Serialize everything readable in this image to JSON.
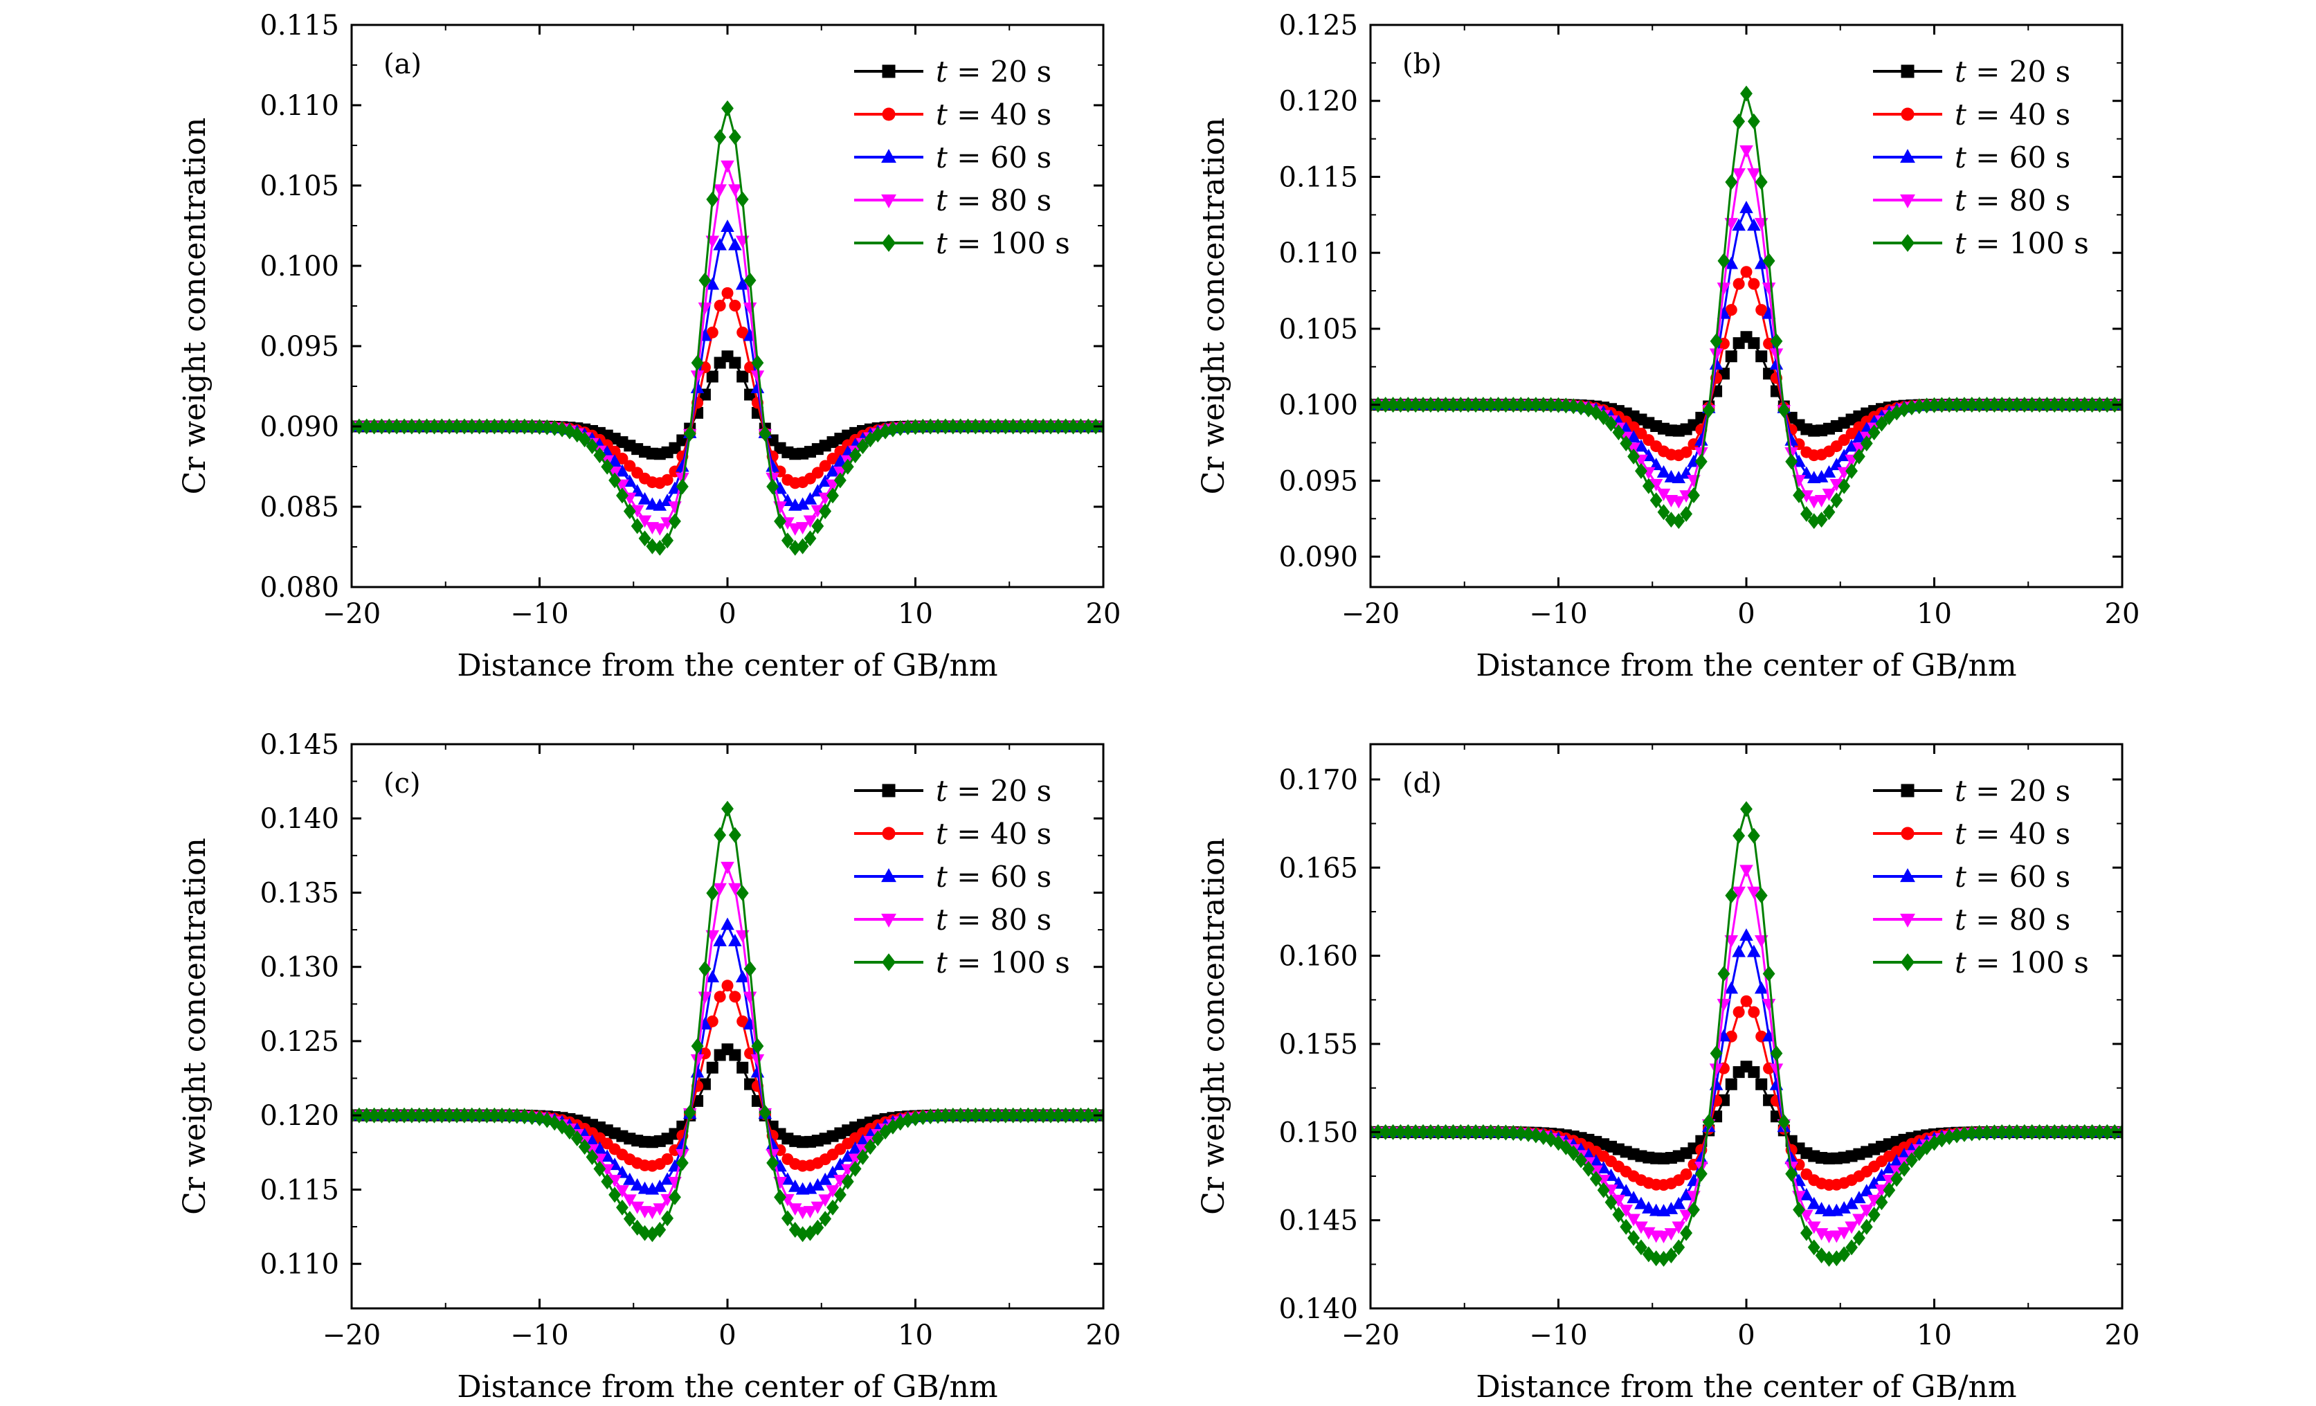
{
  "figure": {
    "series_colors": [
      "#000000",
      "#ff0000",
      "#0000ff",
      "#ff00ff",
      "#008000"
    ],
    "series_markers": [
      "square",
      "circle",
      "triangle-up",
      "triangle-down",
      "diamond"
    ]
  },
  "chart_data": [
    {
      "type": "line",
      "panel": "(a)",
      "xlabel": "Distance from the center of GB/nm",
      "ylabel": "Cr weight concentration",
      "xlim": [
        -20,
        20
      ],
      "ylim": [
        0.08,
        0.115
      ],
      "xticks": [
        -20,
        -10,
        0,
        10,
        20
      ],
      "xtick_labels": [
        "−20",
        "−10",
        "0",
        "10",
        "20"
      ],
      "yticks": [
        0.08,
        0.085,
        0.09,
        0.095,
        0.1,
        0.105,
        0.11,
        0.115
      ],
      "ytick_labels": [
        "0.080",
        "0.085",
        "0.090",
        "0.095",
        "0.100",
        "0.105",
        "0.110",
        "0.115"
      ],
      "legend_position": "top-right",
      "baseline": 0.09,
      "peak_x": 0,
      "valley_x": [
        -3.5,
        3.5
      ],
      "series": [
        {
          "name": "t = 20 s",
          "symbol": "t",
          "rest": " = 20 s",
          "peak": 0.0947,
          "valley": 0.0883
        },
        {
          "name": "t = 40 s",
          "symbol": "t",
          "rest": " = 40 s",
          "peak": 0.099,
          "valley": 0.0865
        },
        {
          "name": "t = 60 s",
          "symbol": "t",
          "rest": " = 60 s",
          "peak": 0.1034,
          "valley": 0.0851
        },
        {
          "name": "t = 80 s",
          "symbol": "t",
          "rest": " = 80 s",
          "peak": 0.1075,
          "valley": 0.0837
        },
        {
          "name": "t = 100 s",
          "symbol": "t",
          "rest": " = 100 s",
          "peak": 0.1113,
          "valley": 0.0825
        }
      ]
    },
    {
      "type": "line",
      "panel": "(b)",
      "xlabel": "Distance from the center of GB/nm",
      "ylabel": "Cr weight concentration",
      "xlim": [
        -20,
        20
      ],
      "ylim": [
        0.088,
        0.125
      ],
      "xticks": [
        -20,
        -10,
        0,
        10,
        20
      ],
      "xtick_labels": [
        "−20",
        "−10",
        "0",
        "10",
        "20"
      ],
      "yticks": [
        0.09,
        0.095,
        0.1,
        0.105,
        0.11,
        0.115,
        0.12,
        0.125
      ],
      "ytick_labels": [
        "0.090",
        "0.095",
        "0.100",
        "0.105",
        "0.110",
        "0.115",
        "0.120",
        "0.125"
      ],
      "legend_position": "top-right",
      "baseline": 0.1,
      "peak_x": 0,
      "valley_x": [
        -3.5,
        3.5
      ],
      "series": [
        {
          "name": "t = 20 s",
          "symbol": "t",
          "rest": " = 20 s",
          "peak": 0.1048,
          "valley": 0.0983
        },
        {
          "name": "t = 40 s",
          "symbol": "t",
          "rest": " = 40 s",
          "peak": 0.1094,
          "valley": 0.0967
        },
        {
          "name": "t = 60 s",
          "symbol": "t",
          "rest": " = 60 s",
          "peak": 0.1139,
          "valley": 0.0952
        },
        {
          "name": "t = 80 s",
          "symbol": "t",
          "rest": " = 80 s",
          "peak": 0.118,
          "valley": 0.0937
        },
        {
          "name": "t = 100 s",
          "symbol": "t",
          "rest": " = 100 s",
          "peak": 0.122,
          "valley": 0.0924
        }
      ]
    },
    {
      "type": "line",
      "panel": "(c)",
      "xlabel": "Distance from the center of GB/nm",
      "ylabel": "Cr weight concentration",
      "xlim": [
        -20,
        20
      ],
      "ylim": [
        0.107,
        0.145
      ],
      "xticks": [
        -20,
        -10,
        0,
        10,
        20
      ],
      "xtick_labels": [
        "−20",
        "−10",
        "0",
        "10",
        "20"
      ],
      "yticks": [
        0.11,
        0.115,
        0.12,
        0.125,
        0.13,
        0.135,
        0.14,
        0.145
      ],
      "ytick_labels": [
        "0.110",
        "0.115",
        "0.120",
        "0.125",
        "0.130",
        "0.135",
        "0.140",
        "0.145"
      ],
      "legend_position": "top-right",
      "baseline": 0.12,
      "peak_x": 0,
      "valley_x": [
        -4,
        4
      ],
      "series": [
        {
          "name": "t = 20 s",
          "symbol": "t",
          "rest": " = 20 s",
          "peak": 0.1248,
          "valley": 0.1182
        },
        {
          "name": "t = 40 s",
          "symbol": "t",
          "rest": " = 40 s",
          "peak": 0.1294,
          "valley": 0.1166
        },
        {
          "name": "t = 60 s",
          "symbol": "t",
          "rest": " = 60 s",
          "peak": 0.1338,
          "valley": 0.115
        },
        {
          "name": "t = 80 s",
          "symbol": "t",
          "rest": " = 80 s",
          "peak": 0.138,
          "valley": 0.1135
        },
        {
          "name": "t = 100 s",
          "symbol": "t",
          "rest": " = 100 s",
          "peak": 0.1422,
          "valley": 0.112
        }
      ]
    },
    {
      "type": "line",
      "panel": "(d)",
      "xlabel": "Distance from the center of GB/nm",
      "ylabel": "Cr weight concentration",
      "xlim": [
        -20,
        20
      ],
      "ylim": [
        0.14,
        0.172
      ],
      "xticks": [
        -20,
        -10,
        0,
        10,
        20
      ],
      "xtick_labels": [
        "−20",
        "−10",
        "0",
        "10",
        "20"
      ],
      "yticks": [
        0.14,
        0.145,
        0.15,
        0.155,
        0.16,
        0.165,
        0.17
      ],
      "ytick_labels": [
        "0.140",
        "0.145",
        "0.150",
        "0.155",
        "0.160",
        "0.165",
        "0.170"
      ],
      "legend_position": "top-right",
      "baseline": 0.15,
      "peak_x": 0,
      "valley_x": [
        -4.5,
        4.5
      ],
      "series": [
        {
          "name": "t = 20 s",
          "symbol": "t",
          "rest": " = 20 s",
          "peak": 0.154,
          "valley": 0.1485
        },
        {
          "name": "t = 40 s",
          "symbol": "t",
          "rest": " = 40 s",
          "peak": 0.158,
          "valley": 0.147
        },
        {
          "name": "t = 60 s",
          "symbol": "t",
          "rest": " = 60 s",
          "peak": 0.162,
          "valley": 0.1455
        },
        {
          "name": "t = 80 s",
          "symbol": "t",
          "rest": " = 80 s",
          "peak": 0.166,
          "valley": 0.1441
        },
        {
          "name": "t = 100 s",
          "symbol": "t",
          "rest": " = 100 s",
          "peak": 0.1697,
          "valley": 0.1428
        }
      ]
    }
  ]
}
